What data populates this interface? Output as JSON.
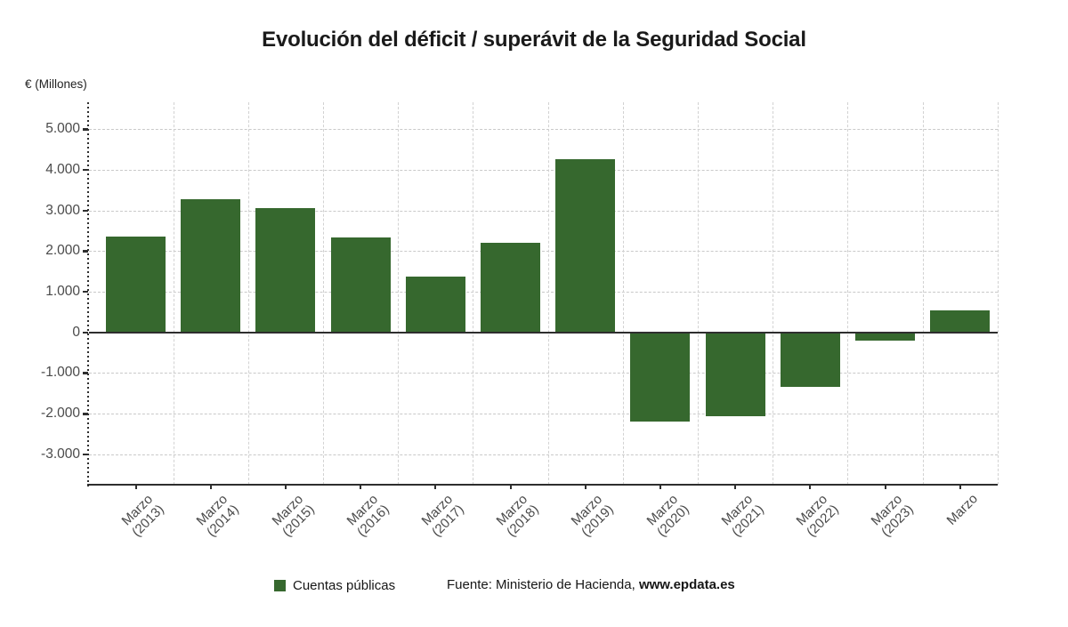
{
  "title": "Evolución del déficit / superávit de la Seguridad Social",
  "unit_label": "€ (Millones)",
  "chart_data": {
    "type": "bar",
    "title": "Evolución del déficit / superávit de la Seguridad Social",
    "ylabel": "€ (Millones)",
    "xlabel": "",
    "categories": [
      "Marzo (2013)",
      "Marzo (2014)",
      "Marzo (2015)",
      "Marzo (2016)",
      "Marzo (2017)",
      "Marzo (2018)",
      "Marzo (2019)",
      "Marzo (2020)",
      "Marzo (2021)",
      "Marzo (2022)",
      "Marzo (2023)",
      "Marzo"
    ],
    "series": [
      {
        "name": "Cuentas públicas",
        "values": [
          2360,
          3270,
          3050,
          2330,
          1380,
          2210,
          4250,
          -2190,
          -2060,
          -1340,
          -200,
          550
        ]
      }
    ],
    "bar_color": "#36682E",
    "yticks": [
      5000,
      4000,
      3000,
      2000,
      1000,
      0,
      -1000,
      -2000,
      -3000
    ],
    "ytick_labels": [
      "5.000",
      "4.000",
      "3.000",
      "2.000",
      "1.000",
      "0",
      "-1.000",
      "-2.000",
      "-3.000"
    ],
    "ylim": [
      -3750,
      5660
    ],
    "grid": true,
    "legend_position": "bottom"
  },
  "legend": {
    "swatch_color": "#36682E",
    "label": "Cuentas públicas"
  },
  "source": {
    "prefix": "Fuente: Ministerio de Hacienda, ",
    "bold": "www.epdata.es"
  }
}
